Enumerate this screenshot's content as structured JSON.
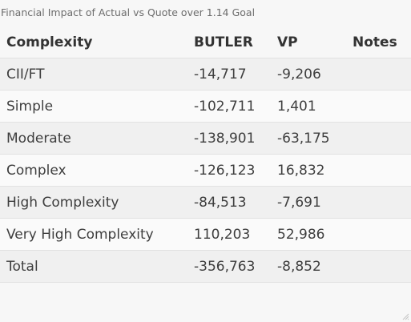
{
  "caption": "Financial Impact of Actual vs Quote over 1.14 Goal",
  "columns": [
    "Complexity",
    "BUTLER",
    "VP",
    "Notes"
  ],
  "rows": [
    {
      "complexity": "CII/FT",
      "butler": "-14,717",
      "vp": "-9,206",
      "notes": ""
    },
    {
      "complexity": "Simple",
      "butler": "-102,711",
      "vp": "1,401",
      "notes": ""
    },
    {
      "complexity": "Moderate",
      "butler": "-138,901",
      "vp": "-63,175",
      "notes": ""
    },
    {
      "complexity": "Complex",
      "butler": "-126,123",
      "vp": "16,832",
      "notes": ""
    },
    {
      "complexity": "High Complexity",
      "butler": "-84,513",
      "vp": "-7,691",
      "notes": ""
    },
    {
      "complexity": "Very High Complexity",
      "butler": "110,203",
      "vp": "52,986",
      "notes": ""
    },
    {
      "complexity": "Total",
      "butler": "-356,763",
      "vp": "-8,852",
      "notes": ""
    }
  ],
  "icons": {
    "resize": "resize-grip-icon"
  }
}
